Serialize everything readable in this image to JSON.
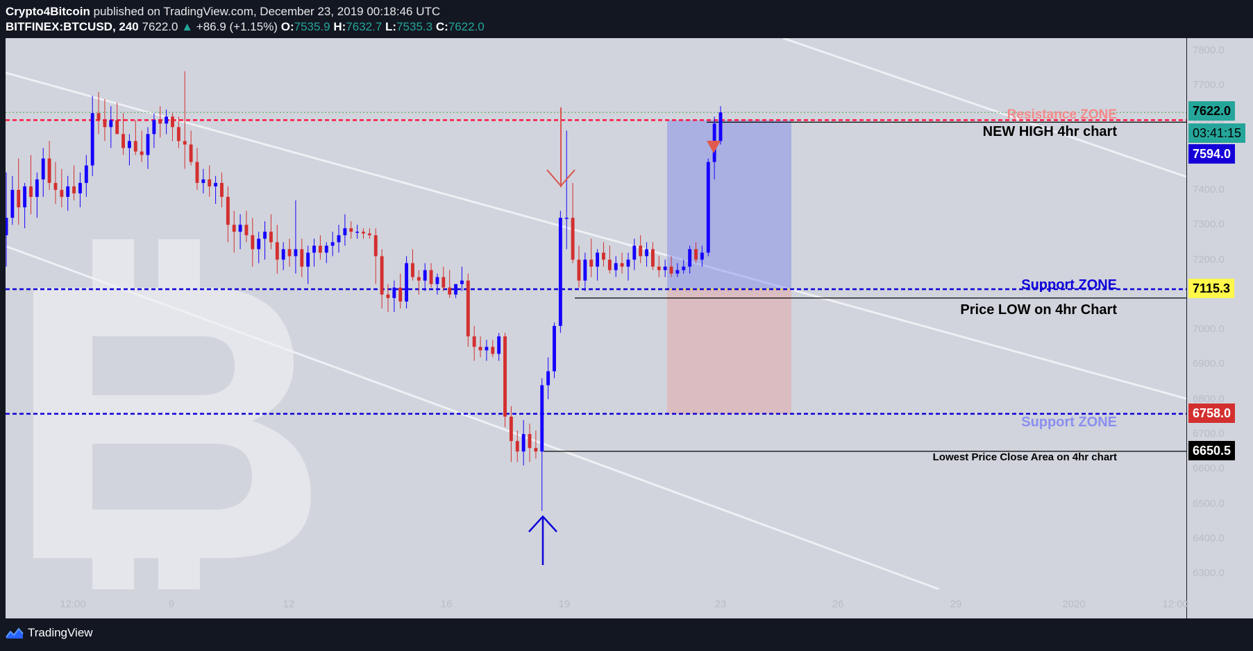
{
  "header": {
    "author": "Crypto4Bitcoin",
    "published": "published on TradingView.com, December 23, 2019 00:18:46 UTC",
    "symbol": "BITFINEX:BTCUSD, 240",
    "last": "7622.0",
    "change_arrow": "▲",
    "change": "+86.9 (+1.15%)",
    "o_label": "O:",
    "o": "7535.9",
    "h_label": "H:",
    "h": "7632.7",
    "l_label": "L:",
    "l": "7535.3",
    "c_label": "C:",
    "c": "7622.0"
  },
  "footer": {
    "brand": "TradingView",
    "icon": "tradingview-logo-icon"
  },
  "colors": {
    "up": "#1500ff",
    "down": "#d32f2f",
    "bg": "#d1d4dc",
    "resistance": "#ff1744",
    "support": "#0d00d8"
  },
  "annotations": {
    "resistance_zone": "Resistance ZONE",
    "new_high": "NEW HIGH 4hr chart",
    "support_zone_1": "Support ZONE",
    "price_low": "Price LOW on 4hr  Chart",
    "support_zone_2": "Support ZONE",
    "lowest_close": "Lowest Price Close Area on 4hr chart"
  },
  "price_tags": {
    "last": "7622.0",
    "countdown": "03:41:15",
    "new_high": "7594.0",
    "support_1": "7115.3",
    "support_2": "6758.0",
    "lowest_close": "6650.5"
  },
  "chart_data": {
    "type": "candlestick",
    "symbol": "BITFINEX:BTCUSD",
    "timeframe": "240",
    "ylim": [
      6255,
      7835
    ],
    "y_ticks": [
      "7800.0",
      "7700.0",
      "7600.0",
      "7500.0",
      "7400.0",
      "7300.0",
      "7200.0",
      "7100.0",
      "7000.0",
      "6900.0",
      "6800.0",
      "6700.0",
      "6600.0",
      "6500.0",
      "6400.0",
      "6300.0"
    ],
    "y_tick_values": [
      7800,
      7700,
      7600,
      7500,
      7400,
      7300,
      7200,
      7100,
      7000,
      6900,
      6800,
      6700,
      6600,
      6500,
      6400,
      6300
    ],
    "x_ticks": [
      "12:00",
      "9",
      "12",
      "16",
      "19",
      "23",
      "26",
      "29",
      "2020",
      "12:00"
    ],
    "levels": [
      {
        "name": "Resistance ZONE",
        "value": 7600,
        "style": "dashed"
      },
      {
        "name": "Support ZONE",
        "value": 7115.3,
        "style": "dashed"
      },
      {
        "name": "Support ZONE",
        "value": 6758,
        "style": "dashed"
      },
      {
        "name": "NEW HIGH 4hr chart",
        "value": 7594,
        "style": "solid"
      },
      {
        "name": "Price LOW on 4hr Chart",
        "value": 7090,
        "style": "solid"
      },
      {
        "name": "Lowest Price Close Area on 4hr chart",
        "value": 6650.5,
        "style": "solid"
      }
    ],
    "last_price": 7622.0,
    "candles": [
      {
        "o": 7270,
        "h": 7450,
        "l": 7180,
        "c": 7320
      },
      {
        "o": 7320,
        "h": 7440,
        "l": 7300,
        "c": 7400
      },
      {
        "o": 7400,
        "h": 7490,
        "l": 7300,
        "c": 7350
      },
      {
        "o": 7350,
        "h": 7420,
        "l": 7290,
        "c": 7410
      },
      {
        "o": 7410,
        "h": 7500,
        "l": 7330,
        "c": 7380
      },
      {
        "o": 7380,
        "h": 7450,
        "l": 7320,
        "c": 7430
      },
      {
        "o": 7430,
        "h": 7520,
        "l": 7380,
        "c": 7490
      },
      {
        "o": 7490,
        "h": 7540,
        "l": 7400,
        "c": 7420
      },
      {
        "o": 7420,
        "h": 7480,
        "l": 7360,
        "c": 7400
      },
      {
        "o": 7400,
        "h": 7460,
        "l": 7350,
        "c": 7380
      },
      {
        "o": 7380,
        "h": 7440,
        "l": 7340,
        "c": 7410
      },
      {
        "o": 7410,
        "h": 7470,
        "l": 7370,
        "c": 7390
      },
      {
        "o": 7390,
        "h": 7450,
        "l": 7350,
        "c": 7420
      },
      {
        "o": 7420,
        "h": 7500,
        "l": 7380,
        "c": 7470
      },
      {
        "o": 7470,
        "h": 7670,
        "l": 7440,
        "c": 7620
      },
      {
        "o": 7620,
        "h": 7680,
        "l": 7560,
        "c": 7600
      },
      {
        "o": 7600,
        "h": 7660,
        "l": 7540,
        "c": 7580
      },
      {
        "o": 7580,
        "h": 7640,
        "l": 7520,
        "c": 7600
      },
      {
        "o": 7600,
        "h": 7650,
        "l": 7560,
        "c": 7560
      },
      {
        "o": 7560,
        "h": 7620,
        "l": 7500,
        "c": 7520
      },
      {
        "o": 7520,
        "h": 7560,
        "l": 7470,
        "c": 7540
      },
      {
        "o": 7540,
        "h": 7600,
        "l": 7500,
        "c": 7510
      },
      {
        "o": 7510,
        "h": 7570,
        "l": 7480,
        "c": 7500
      },
      {
        "o": 7500,
        "h": 7580,
        "l": 7460,
        "c": 7560
      },
      {
        "o": 7560,
        "h": 7620,
        "l": 7520,
        "c": 7600
      },
      {
        "o": 7600,
        "h": 7640,
        "l": 7550,
        "c": 7590
      },
      {
        "o": 7590,
        "h": 7630,
        "l": 7560,
        "c": 7610
      },
      {
        "o": 7610,
        "h": 7620,
        "l": 7540,
        "c": 7580
      },
      {
        "o": 7580,
        "h": 7610,
        "l": 7520,
        "c": 7540
      },
      {
        "o": 7540,
        "h": 7740,
        "l": 7460,
        "c": 7530
      },
      {
        "o": 7530,
        "h": 7570,
        "l": 7470,
        "c": 7480
      },
      {
        "o": 7480,
        "h": 7520,
        "l": 7400,
        "c": 7420
      },
      {
        "o": 7420,
        "h": 7460,
        "l": 7390,
        "c": 7430
      },
      {
        "o": 7430,
        "h": 7470,
        "l": 7380,
        "c": 7410
      },
      {
        "o": 7410,
        "h": 7440,
        "l": 7360,
        "c": 7420
      },
      {
        "o": 7420,
        "h": 7450,
        "l": 7350,
        "c": 7380
      },
      {
        "o": 7380,
        "h": 7410,
        "l": 7250,
        "c": 7300
      },
      {
        "o": 7300,
        "h": 7340,
        "l": 7220,
        "c": 7280
      },
      {
        "o": 7280,
        "h": 7330,
        "l": 7230,
        "c": 7300
      },
      {
        "o": 7300,
        "h": 7340,
        "l": 7250,
        "c": 7270
      },
      {
        "o": 7270,
        "h": 7320,
        "l": 7180,
        "c": 7230
      },
      {
        "o": 7230,
        "h": 7280,
        "l": 7190,
        "c": 7260
      },
      {
        "o": 7260,
        "h": 7310,
        "l": 7200,
        "c": 7280
      },
      {
        "o": 7280,
        "h": 7330,
        "l": 7230,
        "c": 7250
      },
      {
        "o": 7250,
        "h": 7300,
        "l": 7160,
        "c": 7200
      },
      {
        "o": 7200,
        "h": 7250,
        "l": 7170,
        "c": 7230
      },
      {
        "o": 7230,
        "h": 7260,
        "l": 7180,
        "c": 7210
      },
      {
        "o": 7210,
        "h": 7370,
        "l": 7160,
        "c": 7230
      },
      {
        "o": 7230,
        "h": 7260,
        "l": 7150,
        "c": 7180
      },
      {
        "o": 7180,
        "h": 7240,
        "l": 7130,
        "c": 7220
      },
      {
        "o": 7220,
        "h": 7260,
        "l": 7180,
        "c": 7240
      },
      {
        "o": 7240,
        "h": 7270,
        "l": 7200,
        "c": 7220
      },
      {
        "o": 7220,
        "h": 7250,
        "l": 7190,
        "c": 7240
      },
      {
        "o": 7240,
        "h": 7280,
        "l": 7210,
        "c": 7250
      },
      {
        "o": 7250,
        "h": 7300,
        "l": 7220,
        "c": 7270
      },
      {
        "o": 7270,
        "h": 7330,
        "l": 7240,
        "c": 7290
      },
      {
        "o": 7290,
        "h": 7310,
        "l": 7260,
        "c": 7280
      },
      {
        "o": 7280,
        "h": 7300,
        "l": 7260,
        "c": 7280
      },
      {
        "o": 7280,
        "h": 7290,
        "l": 7260,
        "c": 7275
      },
      {
        "o": 7275,
        "h": 7290,
        "l": 7260,
        "c": 7270
      },
      {
        "o": 7270,
        "h": 7290,
        "l": 7130,
        "c": 7210
      },
      {
        "o": 7210,
        "h": 7230,
        "l": 7060,
        "c": 7100
      },
      {
        "o": 7100,
        "h": 7130,
        "l": 7050,
        "c": 7090
      },
      {
        "o": 7090,
        "h": 7140,
        "l": 7050,
        "c": 7120
      },
      {
        "o": 7120,
        "h": 7160,
        "l": 7060,
        "c": 7080
      },
      {
        "o": 7080,
        "h": 7210,
        "l": 7060,
        "c": 7190
      },
      {
        "o": 7190,
        "h": 7230,
        "l": 7140,
        "c": 7150
      },
      {
        "o": 7150,
        "h": 7170,
        "l": 7100,
        "c": 7140
      },
      {
        "o": 7140,
        "h": 7190,
        "l": 7110,
        "c": 7170
      },
      {
        "o": 7170,
        "h": 7190,
        "l": 7120,
        "c": 7130
      },
      {
        "o": 7130,
        "h": 7160,
        "l": 7100,
        "c": 7150
      },
      {
        "o": 7150,
        "h": 7180,
        "l": 7110,
        "c": 7120
      },
      {
        "o": 7120,
        "h": 7170,
        "l": 7090,
        "c": 7100
      },
      {
        "o": 7100,
        "h": 7130,
        "l": 7090,
        "c": 7130
      },
      {
        "o": 7130,
        "h": 7180,
        "l": 7110,
        "c": 7140
      },
      {
        "o": 7140,
        "h": 7160,
        "l": 6950,
        "c": 6980
      },
      {
        "o": 6980,
        "h": 7010,
        "l": 6910,
        "c": 6950
      },
      {
        "o": 6950,
        "h": 6980,
        "l": 6920,
        "c": 6940
      },
      {
        "o": 6940,
        "h": 6970,
        "l": 6910,
        "c": 6950
      },
      {
        "o": 6950,
        "h": 6970,
        "l": 6920,
        "c": 6930
      },
      {
        "o": 6930,
        "h": 6990,
        "l": 6910,
        "c": 6980
      },
      {
        "o": 6980,
        "h": 6990,
        "l": 6720,
        "c": 6750
      },
      {
        "o": 6750,
        "h": 6780,
        "l": 6620,
        "c": 6680
      },
      {
        "o": 6680,
        "h": 6710,
        "l": 6620,
        "c": 6650
      },
      {
        "o": 6650,
        "h": 6740,
        "l": 6610,
        "c": 6700
      },
      {
        "o": 6700,
        "h": 6730,
        "l": 6620,
        "c": 6660
      },
      {
        "o": 6660,
        "h": 6710,
        "l": 6630,
        "c": 6650
      },
      {
        "o": 6650,
        "h": 6860,
        "l": 6480,
        "c": 6840
      },
      {
        "o": 6840,
        "h": 6920,
        "l": 6800,
        "c": 6880
      },
      {
        "o": 6880,
        "h": 7020,
        "l": 6860,
        "c": 7010
      },
      {
        "o": 7010,
        "h": 7340,
        "l": 6990,
        "c": 7320
      },
      {
        "o": 7320,
        "h": 7570,
        "l": 7230,
        "c": 7320
      },
      {
        "o": 7320,
        "h": 7420,
        "l": 7190,
        "c": 7200
      },
      {
        "o": 7200,
        "h": 7240,
        "l": 7120,
        "c": 7140
      },
      {
        "o": 7140,
        "h": 7220,
        "l": 7110,
        "c": 7200
      },
      {
        "o": 7200,
        "h": 7260,
        "l": 7150,
        "c": 7180
      },
      {
        "o": 7180,
        "h": 7230,
        "l": 7140,
        "c": 7220
      },
      {
        "o": 7220,
        "h": 7250,
        "l": 7180,
        "c": 7200
      },
      {
        "o": 7200,
        "h": 7240,
        "l": 7160,
        "c": 7170
      },
      {
        "o": 7170,
        "h": 7210,
        "l": 7150,
        "c": 7190
      },
      {
        "o": 7190,
        "h": 7220,
        "l": 7160,
        "c": 7180
      },
      {
        "o": 7180,
        "h": 7220,
        "l": 7140,
        "c": 7200
      },
      {
        "o": 7200,
        "h": 7260,
        "l": 7170,
        "c": 7240
      },
      {
        "o": 7240,
        "h": 7270,
        "l": 7190,
        "c": 7210
      },
      {
        "o": 7210,
        "h": 7250,
        "l": 7180,
        "c": 7230
      },
      {
        "o": 7230,
        "h": 7250,
        "l": 7170,
        "c": 7180
      },
      {
        "o": 7180,
        "h": 7210,
        "l": 7150,
        "c": 7170
      },
      {
        "o": 7170,
        "h": 7200,
        "l": 7150,
        "c": 7180
      },
      {
        "o": 7180,
        "h": 7210,
        "l": 7150,
        "c": 7160
      },
      {
        "o": 7160,
        "h": 7190,
        "l": 7150,
        "c": 7170
      },
      {
        "o": 7170,
        "h": 7200,
        "l": 7160,
        "c": 7180
      },
      {
        "o": 7180,
        "h": 7240,
        "l": 7160,
        "c": 7230
      },
      {
        "o": 7230,
        "h": 7250,
        "l": 7190,
        "c": 7200
      },
      {
        "o": 7200,
        "h": 7240,
        "l": 7180,
        "c": 7220
      },
      {
        "o": 7220,
        "h": 7490,
        "l": 7210,
        "c": 7480
      },
      {
        "o": 7480,
        "h": 7610,
        "l": 7430,
        "c": 7590
      },
      {
        "o": 7540,
        "h": 7640,
        "l": 7530,
        "c": 7622
      }
    ]
  }
}
